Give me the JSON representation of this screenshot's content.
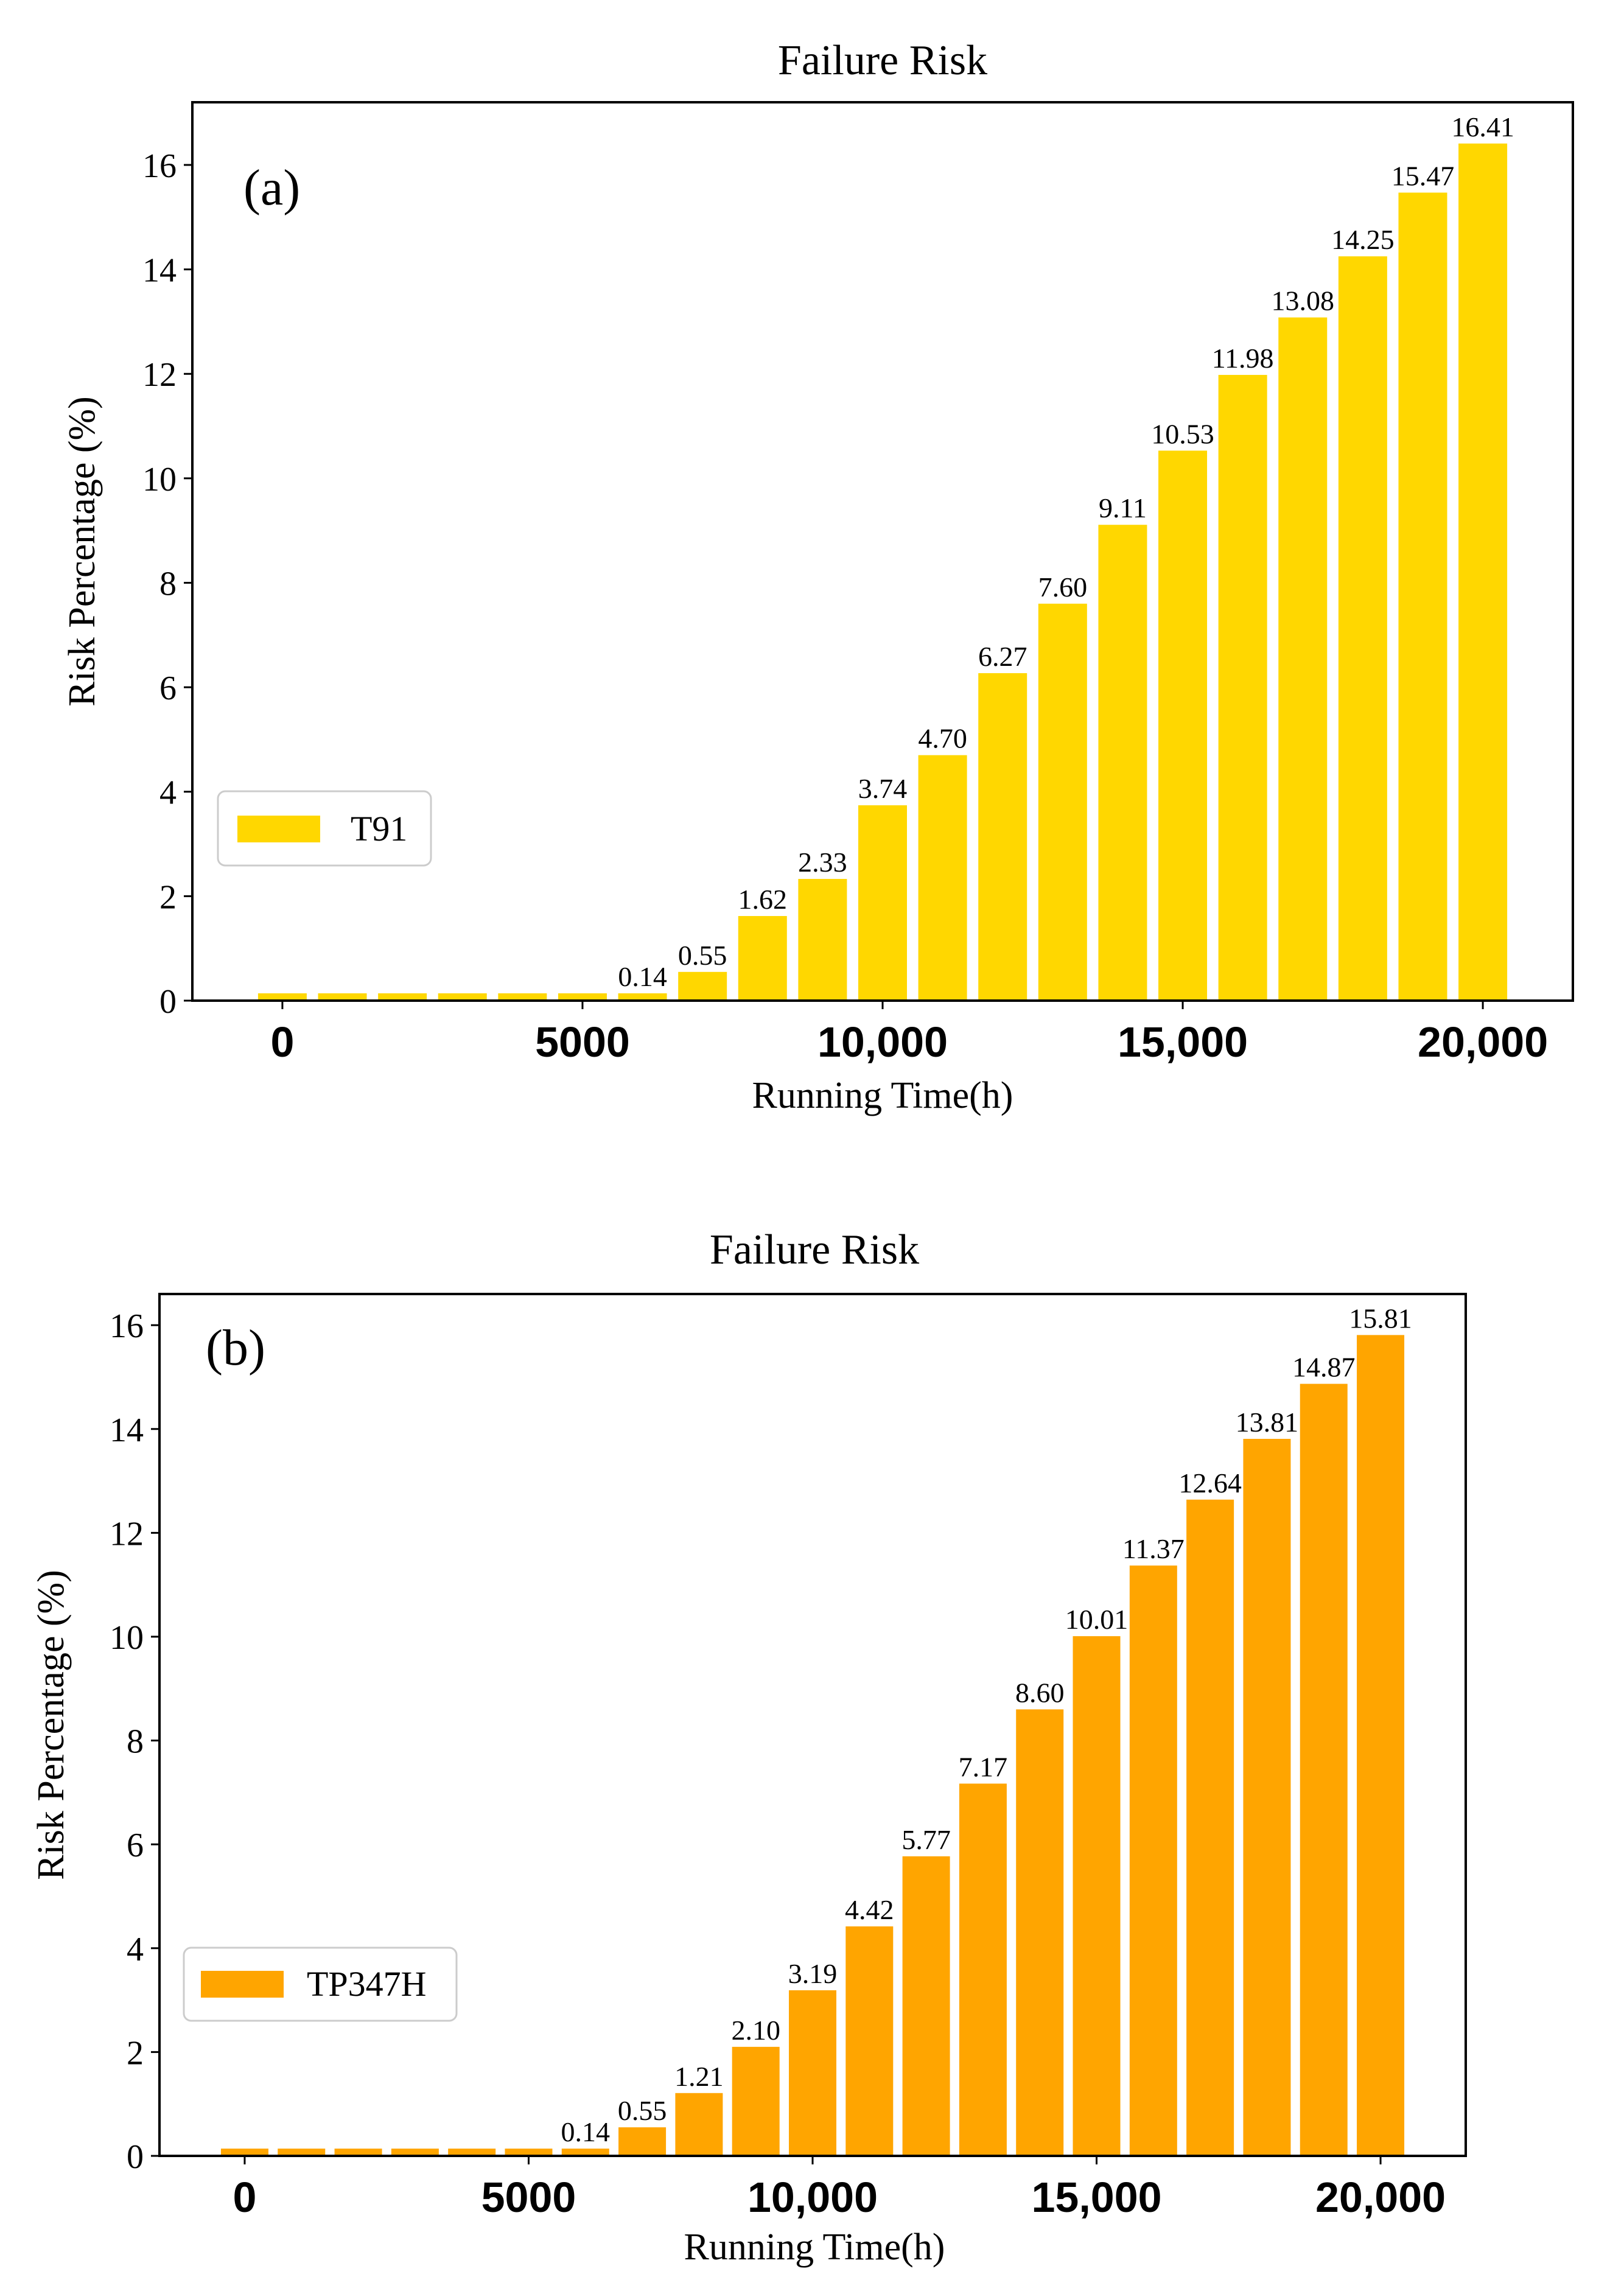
{
  "chart_data": [
    {
      "type": "bar",
      "panel": "(a)",
      "title": "Failure Risk",
      "xlabel": "Running Time(h)",
      "ylabel": "Risk Percentage (%)",
      "ylim": [
        0,
        17.2
      ],
      "yticks": [
        0,
        2,
        4,
        6,
        8,
        10,
        12,
        14,
        16
      ],
      "xlim": [
        -1500,
        21500
      ],
      "xticks": [
        0,
        5000,
        10000,
        15000,
        20000
      ],
      "xtick_labels": [
        "0",
        "5000",
        "10,000",
        "15,000",
        "20,000"
      ],
      "x": [
        0,
        1000,
        2000,
        3000,
        4000,
        5000,
        6000,
        7000,
        8000,
        9000,
        10000,
        11000,
        12000,
        13000,
        14000,
        15000,
        16000,
        17000,
        18000,
        19000,
        20000
      ],
      "values": [
        0.14,
        0.14,
        0.14,
        0.14,
        0.14,
        0.14,
        0.14,
        0.55,
        1.62,
        2.33,
        3.74,
        4.7,
        6.27,
        7.6,
        9.11,
        10.53,
        11.98,
        13.08,
        14.25,
        15.47,
        16.41
      ],
      "data_labels": [
        "",
        "",
        "",
        "",
        "",
        "",
        "0.14",
        "0.55",
        "1.62",
        "2.33",
        "3.74",
        "4.70",
        "6.27",
        "7.60",
        "9.11",
        "10.53",
        "11.98",
        "13.08",
        "14.25",
        "15.47",
        "16.41"
      ],
      "legend": "T91",
      "legend_position": "center-left",
      "color": "#FFD700"
    },
    {
      "type": "bar",
      "panel": "(b)",
      "title": "Failure Risk",
      "xlabel": "Running Time(h)",
      "ylabel": "Risk Percentage (%)",
      "ylim": [
        0,
        16.6
      ],
      "yticks": [
        0,
        2,
        4,
        6,
        8,
        10,
        12,
        14,
        16
      ],
      "xlim": [
        -1500,
        21500
      ],
      "xticks": [
        0,
        5000,
        10000,
        15000,
        20000
      ],
      "xtick_labels": [
        "0",
        "5000",
        "10,000",
        "15,000",
        "20,000"
      ],
      "x": [
        0,
        1000,
        2000,
        3000,
        4000,
        5000,
        6000,
        7000,
        8000,
        9000,
        10000,
        11000,
        12000,
        13000,
        14000,
        15000,
        16000,
        17000,
        18000,
        19000,
        20000
      ],
      "values": [
        0.14,
        0.14,
        0.14,
        0.14,
        0.14,
        0.14,
        0.14,
        0.55,
        1.21,
        2.1,
        3.19,
        4.42,
        5.77,
        7.17,
        8.6,
        10.01,
        11.37,
        12.64,
        13.81,
        14.87,
        15.81
      ],
      "data_labels": [
        "",
        "",
        "",
        "",
        "",
        "",
        "0.14",
        "0.55",
        "1.21",
        "2.10",
        "3.19",
        "4.42",
        "5.77",
        "7.17",
        "8.60",
        "10.01",
        "11.37",
        "12.64",
        "13.81",
        "14.87",
        "15.81"
      ],
      "legend": "TP347H",
      "legend_position": "center-left",
      "color": "#FFA500"
    }
  ]
}
